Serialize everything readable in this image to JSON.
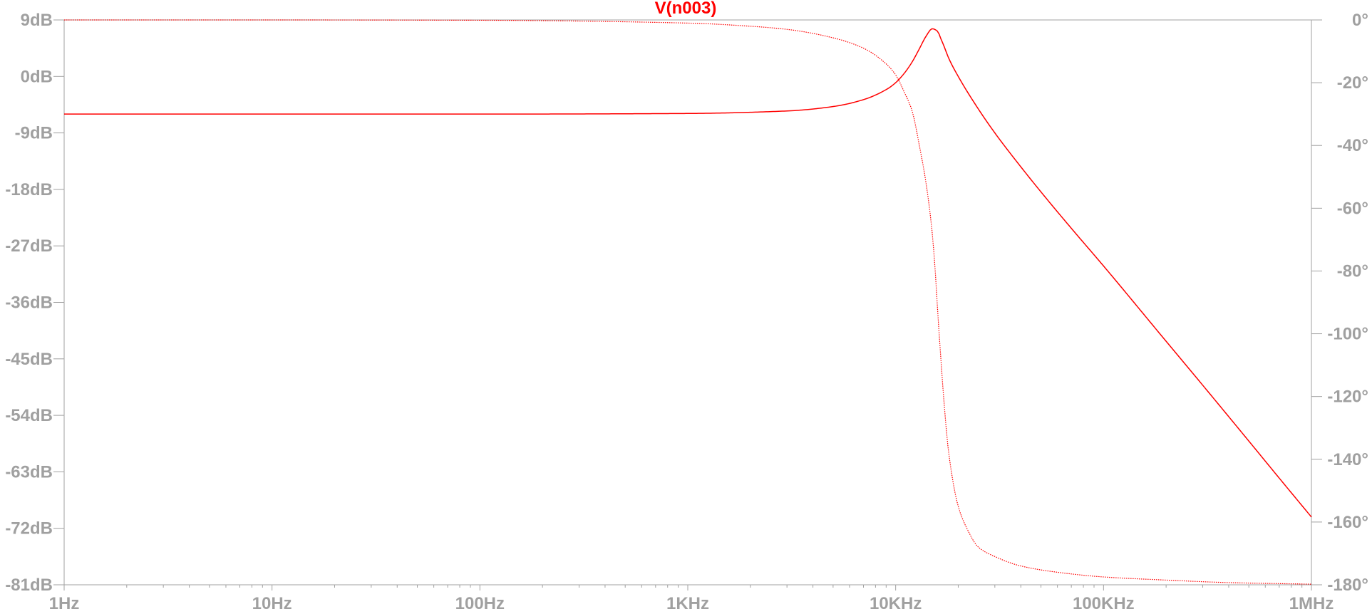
{
  "chart_data": {
    "type": "line",
    "title": "V(n003)",
    "xscale": "log",
    "xlim": [
      1,
      1000000
    ],
    "x_ticks": [
      {
        "value": 1,
        "label": "1Hz"
      },
      {
        "value": 10,
        "label": "10Hz"
      },
      {
        "value": 100,
        "label": "100Hz"
      },
      {
        "value": 1000,
        "label": "1KHz"
      },
      {
        "value": 10000,
        "label": "10KHz"
      },
      {
        "value": 100000,
        "label": "100KHz"
      },
      {
        "value": 1000000,
        "label": "1MHz"
      }
    ],
    "y_left": {
      "unit": "dB",
      "ylim": [
        -81,
        9
      ],
      "ticks": [
        {
          "value": 9,
          "label": "9dB"
        },
        {
          "value": 0,
          "label": "0dB"
        },
        {
          "value": -9,
          "label": "-9dB"
        },
        {
          "value": -18,
          "label": "-18dB"
        },
        {
          "value": -27,
          "label": "-27dB"
        },
        {
          "value": -36,
          "label": "-36dB"
        },
        {
          "value": -45,
          "label": "-45dB"
        },
        {
          "value": -54,
          "label": "-54dB"
        },
        {
          "value": -63,
          "label": "-63dB"
        },
        {
          "value": -72,
          "label": "-72dB"
        },
        {
          "value": -81,
          "label": "-81dB"
        }
      ]
    },
    "y_right": {
      "unit": "deg",
      "ylim": [
        -180,
        0
      ],
      "ticks": [
        {
          "value": 0,
          "label": "0°"
        },
        {
          "value": -20,
          "label": "-20°"
        },
        {
          "value": -40,
          "label": "-40°"
        },
        {
          "value": -60,
          "label": "-60°"
        },
        {
          "value": -80,
          "label": "-80°"
        },
        {
          "value": -100,
          "label": "-100°"
        },
        {
          "value": -120,
          "label": "-120°"
        },
        {
          "value": -140,
          "label": "-140°"
        },
        {
          "value": -160,
          "label": "-160°"
        },
        {
          "value": -180,
          "label": "-180°"
        }
      ]
    },
    "grid": false,
    "series": [
      {
        "axis": "left",
        "style": "solid",
        "color": "#ff0000",
        "x": [
          1,
          10,
          100,
          1000,
          3000,
          5000,
          7000,
          9000,
          10000,
          11000,
          12000,
          13000,
          14000,
          15000,
          15900,
          16500,
          17000,
          18000,
          20000,
          25000,
          30000,
          40000,
          50000,
          70000,
          100000,
          200000,
          300000,
          500000,
          700000,
          1000000
        ],
        "values": [
          -6,
          -6,
          -6,
          -5.9,
          -5.5,
          -4.8,
          -3.7,
          -2.1,
          -1,
          0.5,
          2.3,
          4.4,
          6.4,
          7.6,
          7.2,
          6.0,
          5.0,
          2.9,
          0,
          -5.2,
          -9.0,
          -14.4,
          -18.4,
          -24.2,
          -30.2,
          -42.2,
          -49.2,
          -58.1,
          -64.0,
          -70.2
        ]
      },
      {
        "axis": "right",
        "style": "dotted",
        "color": "#ff0000",
        "x": [
          1,
          10,
          100,
          1000,
          2000,
          3000,
          5000,
          7000,
          9000,
          10000,
          11000,
          12000,
          13000,
          14000,
          15000,
          15500,
          16000,
          16500,
          17000,
          18000,
          20000,
          22000,
          25000,
          30000,
          40000,
          60000,
          100000,
          200000,
          400000,
          1000000
        ],
        "values": [
          0,
          0,
          -0.1,
          -1,
          -2,
          -3,
          -5.7,
          -9,
          -14,
          -17.5,
          -23,
          -29,
          -40,
          -52,
          -68,
          -80,
          -95,
          -108,
          -120,
          -138,
          -155,
          -162,
          -168,
          -171,
          -174,
          -176,
          -177.5,
          -178.5,
          -179.3,
          -179.8
        ]
      }
    ]
  }
}
